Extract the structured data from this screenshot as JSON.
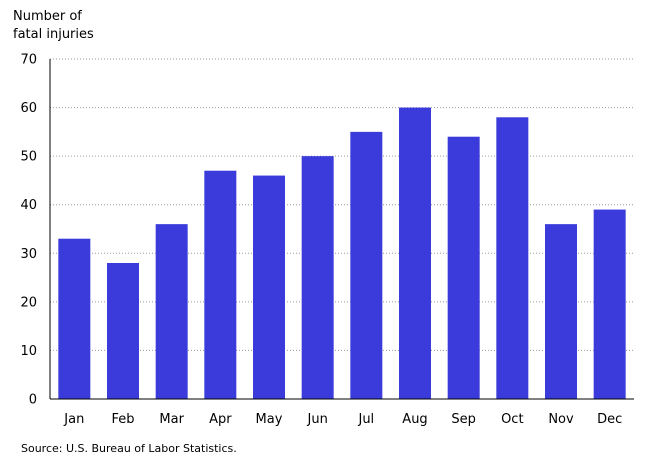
{
  "chart_data": {
    "type": "bar",
    "categories": [
      "Jan",
      "Feb",
      "Mar",
      "Apr",
      "May",
      "Jun",
      "Jul",
      "Aug",
      "Sep",
      "Oct",
      "Nov",
      "Dec"
    ],
    "values": [
      33,
      28,
      36,
      47,
      46,
      50,
      55,
      60,
      54,
      58,
      36,
      39
    ],
    "ylabel_lines": [
      "Number of",
      "fatal injuries"
    ],
    "xlabel": "",
    "ylim": [
      0,
      70
    ],
    "yticks": [
      0,
      10,
      20,
      30,
      40,
      50,
      60,
      70
    ],
    "grid": "horizontal-dotted",
    "bar_color": "#3b3bdb",
    "legend": "none"
  },
  "source": "Source:  U.S. Bureau of Labor Statistics."
}
